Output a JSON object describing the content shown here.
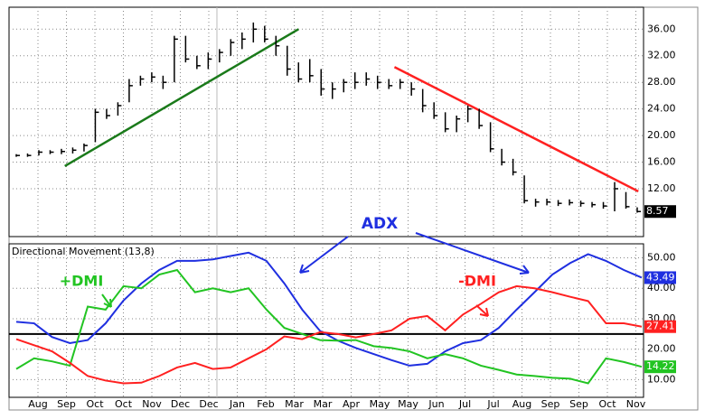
{
  "chart_data": [
    {
      "type": "ohlc",
      "color": "#000000",
      "high": [
        17.2,
        17.3,
        17.8,
        17.8,
        18,
        18.2,
        18.8,
        24,
        24,
        25,
        28.5,
        29,
        29.5,
        29,
        35,
        35,
        32,
        32.5,
        33,
        34.5,
        35.5,
        37,
        36.5,
        35,
        33.5,
        31,
        31.5,
        30,
        28,
        28.5,
        29.5,
        29.5,
        29,
        28.5,
        28.5,
        28,
        27,
        25,
        23.5,
        23,
        24.5,
        24,
        22,
        18,
        16.5,
        14,
        10.5,
        10.5,
        10.3,
        10.4,
        10.2,
        10,
        10,
        13,
        11.5,
        9.2
      ],
      "low": [
        16.8,
        16.8,
        17,
        17.2,
        17.2,
        17.3,
        17.6,
        19,
        22.5,
        23,
        25,
        27.5,
        28,
        27,
        28,
        31,
        30,
        30,
        31,
        32,
        33,
        34,
        34,
        32,
        29,
        28,
        28,
        26,
        25.5,
        26.5,
        27,
        27.5,
        27,
        27,
        27,
        26,
        23.5,
        22.5,
        20.5,
        20.5,
        22,
        21,
        17.5,
        15.5,
        14,
        9.8,
        9.3,
        9.5,
        9.4,
        9.5,
        9.3,
        9.2,
        9,
        8.6,
        9,
        8.4
      ],
      "close": [
        17,
        17,
        17.5,
        17.5,
        17.6,
        17.8,
        18.5,
        23.5,
        23,
        24.5,
        27.5,
        28.5,
        28.8,
        28,
        34.5,
        31.5,
        30.5,
        31.5,
        32.5,
        34,
        34.5,
        36,
        34.5,
        33.5,
        30,
        28.5,
        29,
        27,
        27,
        28,
        28,
        28.5,
        28,
        27.5,
        28,
        27,
        24.5,
        23,
        21,
        22.5,
        24,
        21.5,
        18,
        16,
        14.5,
        10.2,
        10,
        10,
        9.8,
        9.9,
        9.8,
        9.6,
        9.4,
        12,
        9.3,
        8.57
      ],
      "ylim": [
        4.8,
        39.3
      ],
      "yticks": [
        {
          "value": 36,
          "label": "36.00"
        },
        {
          "value": 32,
          "label": "32.00"
        },
        {
          "value": 28,
          "label": "28.00"
        },
        {
          "value": 24,
          "label": "24.00"
        },
        {
          "value": 20,
          "label": "20.00"
        },
        {
          "value": 16,
          "label": "16.00"
        },
        {
          "value": 12,
          "label": "12.00"
        }
      ],
      "grid": true,
      "trendlines": [
        {
          "color": "#1a7a1a",
          "from": [
            4.3,
            15.4
          ],
          "to": [
            25,
            36
          ]
        },
        {
          "color": "#ff2020",
          "from": [
            33.5,
            30.3
          ],
          "to": [
            55.1,
            11.6
          ]
        }
      ]
    },
    {
      "type": "line",
      "title": "Directional Movement (13,8)",
      "series": [
        {
          "name": "ADX",
          "color": "#1f2fe0",
          "values": [
            29,
            28.5,
            24,
            22,
            23,
            28.5,
            36,
            41.6,
            46,
            49,
            49,
            49.5,
            50.6,
            51.7,
            49,
            41.6,
            33,
            26,
            22.8,
            20.4,
            18.4,
            16.4,
            14.6,
            15.2,
            19.3,
            22,
            23,
            27,
            33,
            38.7,
            44.5,
            48.3,
            51.2,
            49,
            46,
            43.49
          ]
        },
        {
          "name": "+DMI",
          "color": "#22c422",
          "values": [
            13.5,
            17,
            16,
            14.6,
            34,
            33,
            40.7,
            40,
            44.5,
            46,
            38.7,
            40,
            38.7,
            40,
            33,
            27,
            25,
            23,
            22.8,
            23,
            21,
            20.4,
            19.3,
            17,
            18.4,
            17,
            14.6,
            13.2,
            11.7,
            11.2,
            10.6,
            10.3,
            8.8,
            17,
            15.8,
            14.22
          ]
        },
        {
          "name": "-DMI",
          "color": "#ff2020",
          "values": [
            23.3,
            21.3,
            19.3,
            15.5,
            11.2,
            9.7,
            8.8,
            9,
            11.2,
            14,
            15.5,
            13.5,
            14,
            17,
            20,
            24.2,
            23.3,
            25.6,
            25,
            23.9,
            25,
            26.2,
            30,
            30.9,
            26.2,
            31.4,
            34.9,
            38.7,
            40.7,
            40,
            38.7,
            37.2,
            35.8,
            28.5,
            28.5,
            27.41
          ]
        }
      ],
      "ylim": [
        4.2,
        54.6
      ],
      "yticks": [
        {
          "value": 50,
          "label": "50.00"
        },
        {
          "value": 40,
          "label": "40.00"
        },
        {
          "value": 30,
          "label": "30.00"
        },
        {
          "value": 20,
          "label": "20.00"
        },
        {
          "value": 10,
          "label": "10.00"
        }
      ],
      "hline": 25,
      "grid": true,
      "xtick_labels": [
        "Aug",
        "Sep",
        "Oct",
        "Oct",
        "Nov",
        "Dec",
        "Dec",
        "Jan",
        "Feb",
        "Mar",
        "Mar",
        "Apr",
        "May",
        "May",
        "Jun",
        "Jul",
        "Jul",
        "Aug",
        "Sep",
        "Sep",
        "Oct",
        "Nov"
      ]
    }
  ]
}
